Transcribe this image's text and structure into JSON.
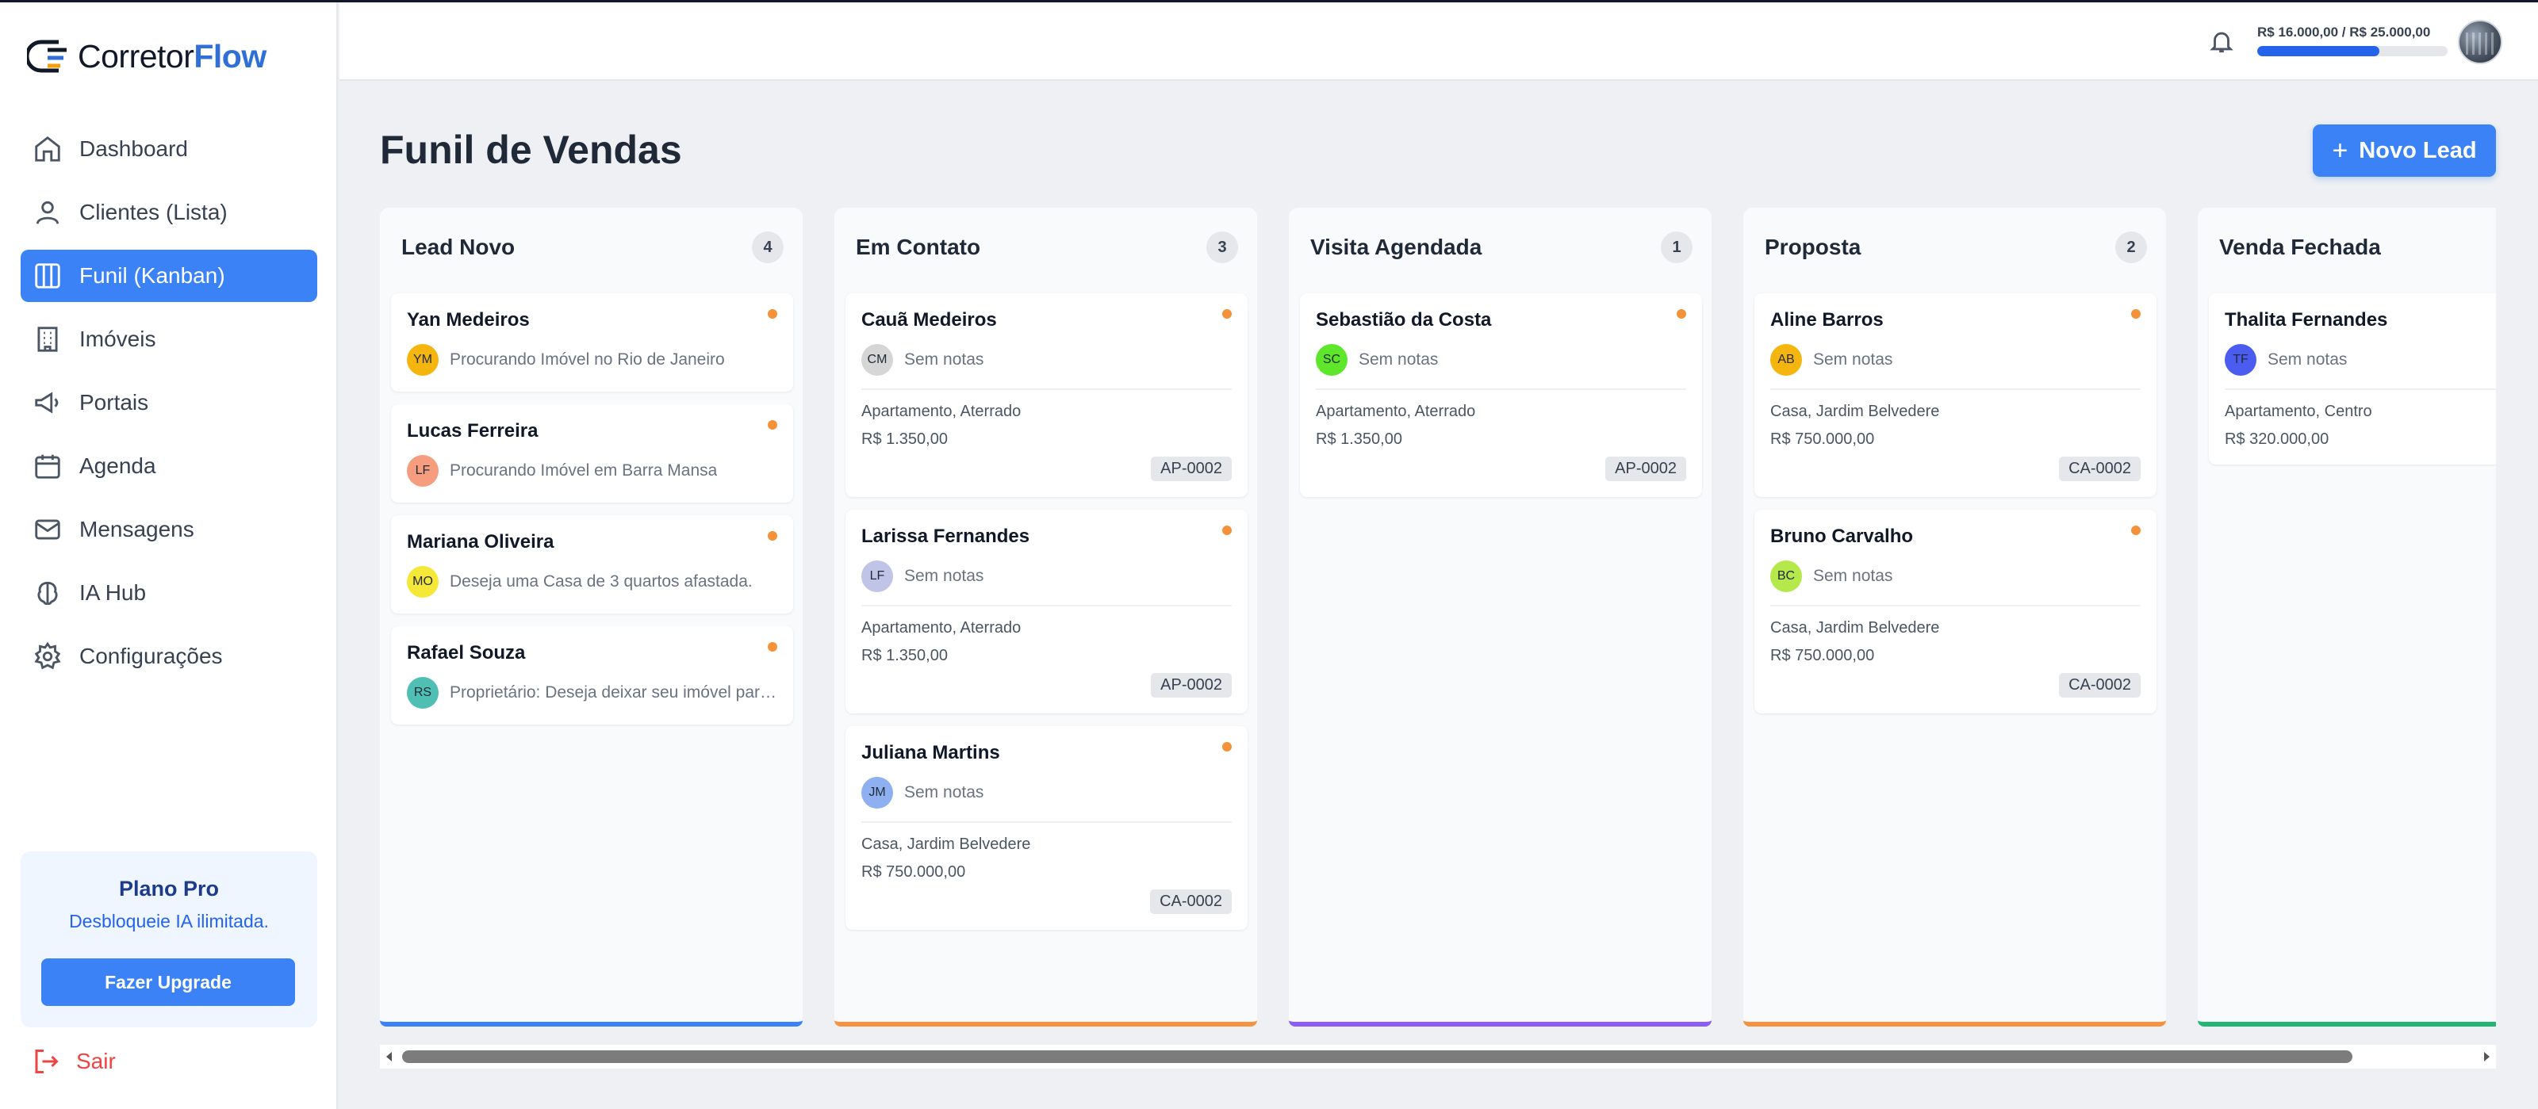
{
  "app": {
    "brand_main": "Corretor",
    "brand_accent": "Flow"
  },
  "sidebar": {
    "items": [
      {
        "label": "Dashboard",
        "icon": "home-icon",
        "active": false
      },
      {
        "label": "Clientes (Lista)",
        "icon": "user-icon",
        "active": false
      },
      {
        "label": "Funil (Kanban)",
        "icon": "kanban-icon",
        "active": true
      },
      {
        "label": "Imóveis",
        "icon": "building-icon",
        "active": false
      },
      {
        "label": "Portais",
        "icon": "megaphone-icon",
        "active": false
      },
      {
        "label": "Agenda",
        "icon": "calendar-icon",
        "active": false
      },
      {
        "label": "Mensagens",
        "icon": "mail-icon",
        "active": false
      },
      {
        "label": "IA Hub",
        "icon": "brain-icon",
        "active": false
      },
      {
        "label": "Configurações",
        "icon": "gear-icon",
        "active": false
      }
    ],
    "plan": {
      "title": "Plano Pro",
      "description": "Desbloqueie IA ilimitada.",
      "button": "Fazer Upgrade"
    },
    "logout": "Sair"
  },
  "header": {
    "quota_text": "R$ 16.000,00 / R$ 25.000,00",
    "quota_fraction": 0.64
  },
  "main": {
    "title": "Funil de Vendas",
    "new_lead_button": "Novo Lead"
  },
  "colors": {
    "accent": "#3b82f6",
    "dot": "#f4923a"
  },
  "columns": [
    {
      "title": "Lead Novo",
      "count": "4",
      "bar_color": "#3b82f6",
      "cards": [
        {
          "name": "Yan Medeiros",
          "initials": "YM",
          "avatar_color": "#f5b50f",
          "note": "Procurando Imóvel no Rio de Janeiro"
        },
        {
          "name": "Lucas Ferreira",
          "initials": "LF",
          "avatar_color": "#f69c7f",
          "note": "Procurando Imóvel em Barra Mansa"
        },
        {
          "name": "Mariana Oliveira",
          "initials": "MO",
          "avatar_color": "#f5e839",
          "note": "Deseja uma Casa de 3 quartos afastada."
        },
        {
          "name": "Rafael Souza",
          "initials": "RS",
          "avatar_color": "#4fbfb3",
          "note": "Proprietário: Deseja deixar seu imóvel para venda no site"
        }
      ]
    },
    {
      "title": "Em Contato",
      "count": "3",
      "bar_color": "#f59342",
      "cards": [
        {
          "name": "Cauã Medeiros",
          "initials": "CM",
          "avatar_color": "#d6d6d6",
          "note": "Sem notas",
          "property": "Apartamento, Aterrado",
          "price": "R$ 1.350,00",
          "code": "AP-0002"
        },
        {
          "name": "Larissa Fernandes",
          "initials": "LF",
          "avatar_color": "#c0c5e8",
          "note": "Sem notas",
          "property": "Apartamento, Aterrado",
          "price": "R$ 1.350,00",
          "code": "AP-0002"
        },
        {
          "name": "Juliana Martins",
          "initials": "JM",
          "avatar_color": "#8fb0f0",
          "note": "Sem notas",
          "property": "Casa, Jardim Belvedere",
          "price": "R$ 750.000,00",
          "code": "CA-0002"
        }
      ]
    },
    {
      "title": "Visita Agendada",
      "count": "1",
      "bar_color": "#8b5cf6",
      "cards": [
        {
          "name": "Sebastião da Costa",
          "initials": "SC",
          "avatar_color": "#5ee62a",
          "note": "Sem notas",
          "property": "Apartamento, Aterrado",
          "price": "R$ 1.350,00",
          "code": "AP-0002"
        }
      ]
    },
    {
      "title": "Proposta",
      "count": "2",
      "bar_color": "#f59342",
      "cards": [
        {
          "name": "Aline Barros",
          "initials": "AB",
          "avatar_color": "#f5b50f",
          "note": "Sem notas",
          "property": "Casa, Jardim Belvedere",
          "price": "R$ 750.000,00",
          "code": "CA-0002"
        },
        {
          "name": "Bruno Carvalho",
          "initials": "BC",
          "avatar_color": "#b5e84a",
          "note": "Sem notas",
          "property": "Casa, Jardim Belvedere",
          "price": "R$ 750.000,00",
          "code": "CA-0002"
        }
      ]
    },
    {
      "title": "Venda Fechada",
      "count": "",
      "bar_color": "#22b573",
      "cards": [
        {
          "name": "Thalita Fernandes",
          "initials": "TF",
          "avatar_color": "#4a5df0",
          "note": "Sem notas",
          "property": "Apartamento, Centro",
          "price": "R$ 320.000,00",
          "code": ""
        }
      ]
    }
  ]
}
